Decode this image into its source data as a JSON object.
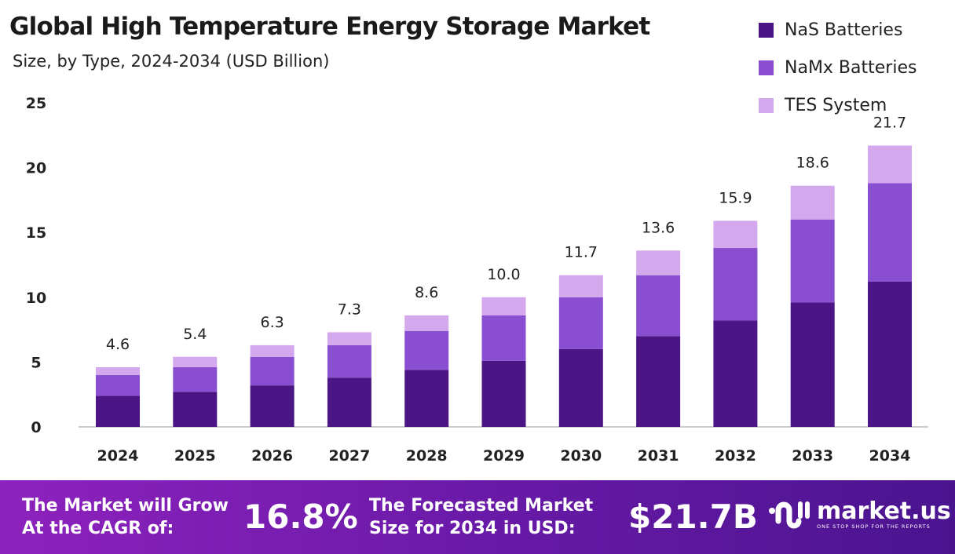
{
  "chart_data": {
    "type": "bar",
    "stacked": true,
    "title": "Global High Temperature Energy Storage Market",
    "subtitle": "Size, by Type, 2024-2034 (USD Billion)",
    "xlabel": "",
    "ylabel": "",
    "ylim": [
      0,
      25
    ],
    "yticks": [
      0,
      5,
      10,
      15,
      20,
      25
    ],
    "grid": false,
    "legend_position": "top-right",
    "categories": [
      "2024",
      "2025",
      "2026",
      "2027",
      "2028",
      "2029",
      "2030",
      "2031",
      "2032",
      "2033",
      "2034"
    ],
    "series": [
      {
        "name": "NaS Batteries",
        "color": "#4b1585",
        "values": [
          2.4,
          2.7,
          3.2,
          3.8,
          4.4,
          5.1,
          6.0,
          7.0,
          8.2,
          9.6,
          11.2
        ]
      },
      {
        "name": "NaMx Batteries",
        "color": "#8a4fd0",
        "values": [
          1.6,
          1.9,
          2.2,
          2.5,
          3.0,
          3.5,
          4.0,
          4.7,
          5.6,
          6.4,
          7.6
        ]
      },
      {
        "name": "TES System",
        "color": "#d4a8ec",
        "values": [
          0.6,
          0.8,
          0.9,
          1.0,
          1.2,
          1.4,
          1.7,
          1.9,
          2.1,
          2.6,
          2.9
        ]
      }
    ],
    "totals": [
      "4.6",
      "5.4",
      "6.3",
      "7.3",
      "8.6",
      "10.0",
      "11.7",
      "13.6",
      "15.9",
      "18.6",
      "21.7"
    ]
  },
  "footer": {
    "cagr_label_line1": "The Market will Grow",
    "cagr_label_line2": "At the CAGR of:",
    "cagr_value": "16.8%",
    "forecast_label_line1": "The Forecasted Market",
    "forecast_label_line2": "Size for 2034 in USD:",
    "forecast_value": "$21.7B",
    "logo_name": "market.us",
    "logo_tagline": "ONE STOP SHOP FOR THE REPORTS"
  }
}
